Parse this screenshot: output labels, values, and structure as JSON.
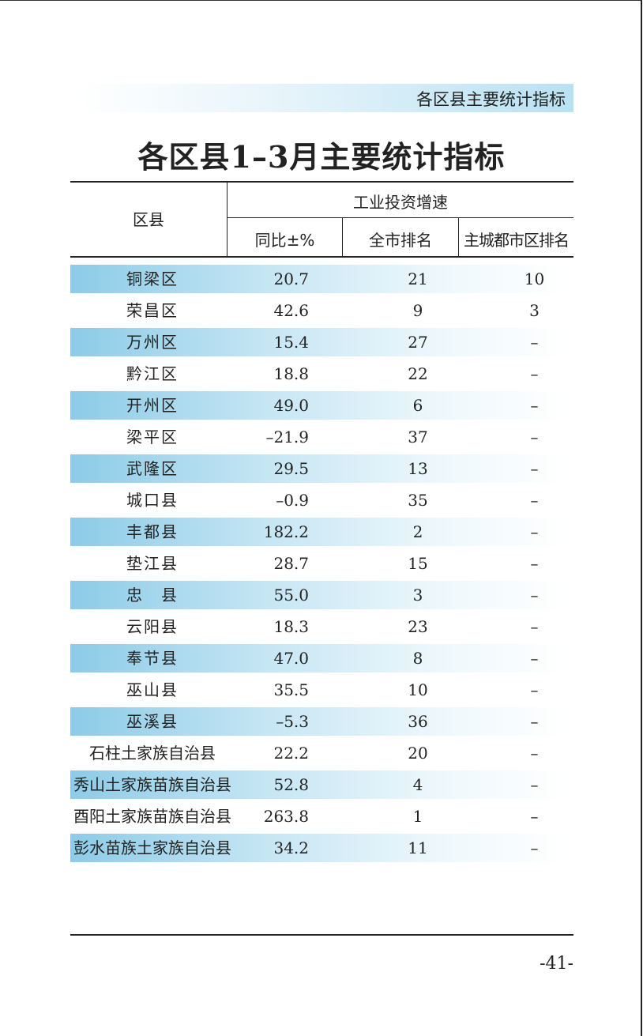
{
  "header_banner": "各区县主要统计指标",
  "title": "各区县1–3月主要统计指标",
  "table": {
    "col_district": "区县",
    "group_header": "工业投资增速",
    "col_yoy": "同比±%",
    "col_city_rank": "全市排名",
    "col_main_rank": "主城都市区排名",
    "rows": [
      {
        "name": "铜梁区",
        "yoy": "20.7",
        "rank": "21",
        "main_rank": "10"
      },
      {
        "name": "荣昌区",
        "yoy": "42.6",
        "rank": "9",
        "main_rank": "3"
      },
      {
        "name": "万州区",
        "yoy": "15.4",
        "rank": "27",
        "main_rank": "–"
      },
      {
        "name": "黔江区",
        "yoy": "18.8",
        "rank": "22",
        "main_rank": "–"
      },
      {
        "name": "开州区",
        "yoy": "49.0",
        "rank": "6",
        "main_rank": "–"
      },
      {
        "name": "梁平区",
        "yoy": "–21.9",
        "rank": "37",
        "main_rank": "–"
      },
      {
        "name": "武隆区",
        "yoy": "29.5",
        "rank": "13",
        "main_rank": "–"
      },
      {
        "name": "城口县",
        "yoy": "–0.9",
        "rank": "35",
        "main_rank": "–"
      },
      {
        "name": "丰都县",
        "yoy": "182.2",
        "rank": "2",
        "main_rank": "–"
      },
      {
        "name": "垫江县",
        "yoy": "28.7",
        "rank": "15",
        "main_rank": "–"
      },
      {
        "name": "忠　县",
        "yoy": "55.0",
        "rank": "3",
        "main_rank": "–"
      },
      {
        "name": "云阳县",
        "yoy": "18.3",
        "rank": "23",
        "main_rank": "–"
      },
      {
        "name": "奉节县",
        "yoy": "47.0",
        "rank": "8",
        "main_rank": "–"
      },
      {
        "name": "巫山县",
        "yoy": "35.5",
        "rank": "10",
        "main_rank": "–"
      },
      {
        "name": "巫溪县",
        "yoy": "–5.3",
        "rank": "36",
        "main_rank": "–"
      },
      {
        "name": "石柱土家族自治县",
        "yoy": "22.2",
        "rank": "20",
        "main_rank": "–"
      },
      {
        "name": "秀山土家族苗族自治县",
        "yoy": "52.8",
        "rank": "4",
        "main_rank": "–"
      },
      {
        "name": "酉阳土家族苗族自治县",
        "yoy": "263.8",
        "rank": "1",
        "main_rank": "–"
      },
      {
        "name": "彭水苗族土家族自治县",
        "yoy": "34.2",
        "rank": "11",
        "main_rank": "–"
      }
    ]
  },
  "page_number": "-41-",
  "colors": {
    "band_dark": "#8ccbe7",
    "text": "#222222"
  }
}
